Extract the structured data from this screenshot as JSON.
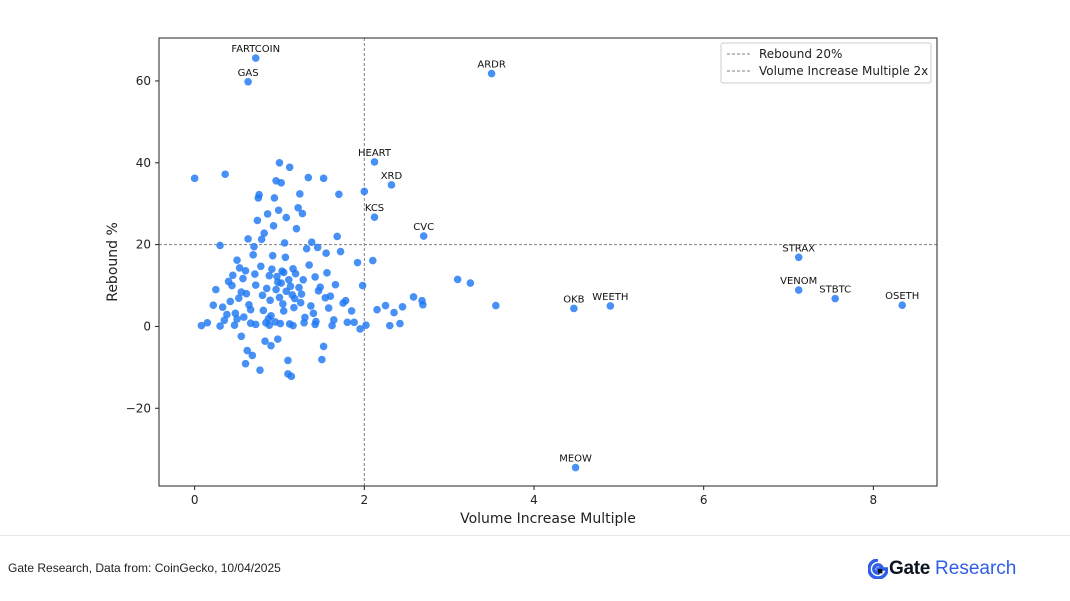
{
  "chart_data": {
    "type": "scatter",
    "xlabel": "Volume Increase Multiple",
    "ylabel": "Rebound %",
    "xlim": [
      -0.42,
      8.75
    ],
    "ylim": [
      -39,
      70.5
    ],
    "xticks": [
      0,
      2,
      4,
      6,
      8
    ],
    "yticks": [
      -20,
      0,
      20,
      40,
      60
    ],
    "grid": false,
    "legend_position": "top-right",
    "point_color": "#1f77f4",
    "reference_lines": [
      {
        "orientation": "horizontal",
        "value": 20,
        "label": "Rebound 20%",
        "style": "dashed",
        "color": "#808080"
      },
      {
        "orientation": "vertical",
        "value": 2,
        "label": "Volume Increase Multiple 2x",
        "style": "dashed",
        "color": "#808080"
      }
    ],
    "labeled_points": [
      {
        "label": "FARTCOIN",
        "x": 0.72,
        "y": 65.6
      },
      {
        "label": "GAS",
        "x": 0.63,
        "y": 59.8
      },
      {
        "label": "ARDR",
        "x": 3.5,
        "y": 61.8
      },
      {
        "label": "HEART",
        "x": 2.12,
        "y": 40.2
      },
      {
        "label": "XRD",
        "x": 2.32,
        "y": 34.6
      },
      {
        "label": "KCS",
        "x": 2.12,
        "y": 26.7
      },
      {
        "label": "CVC",
        "x": 2.7,
        "y": 22.1
      },
      {
        "label": "STRAX",
        "x": 7.12,
        "y": 16.9
      },
      {
        "label": "VENOM",
        "x": 7.12,
        "y": 8.9
      },
      {
        "label": "STBTC",
        "x": 7.55,
        "y": 6.8
      },
      {
        "label": "OSETH",
        "x": 8.34,
        "y": 5.2
      },
      {
        "label": "OKB",
        "x": 4.47,
        "y": 4.4
      },
      {
        "label": "WEETH",
        "x": 4.9,
        "y": 5.0
      },
      {
        "label": "MEOW",
        "x": 4.49,
        "y": -34.5
      }
    ],
    "points": [
      [
        0.0,
        36.2
      ],
      [
        0.36,
        37.2
      ],
      [
        0.08,
        0.2
      ],
      [
        0.15,
        0.9
      ],
      [
        0.22,
        5.2
      ],
      [
        0.25,
        9.0
      ],
      [
        0.3,
        19.8
      ],
      [
        0.33,
        4.7
      ],
      [
        0.38,
        2.9
      ],
      [
        0.4,
        11.0
      ],
      [
        0.45,
        12.5
      ],
      [
        0.47,
        0.3
      ],
      [
        0.5,
        16.2
      ],
      [
        0.52,
        6.9
      ],
      [
        0.55,
        8.4
      ],
      [
        0.58,
        2.3
      ],
      [
        0.6,
        13.6
      ],
      [
        0.62,
        -5.9
      ],
      [
        0.63,
        21.4
      ],
      [
        0.66,
        4.1
      ],
      [
        0.68,
        -7.1
      ],
      [
        0.7,
        19.5
      ],
      [
        0.72,
        10.1
      ],
      [
        0.74,
        25.9
      ],
      [
        0.75,
        31.4
      ],
      [
        0.76,
        32.2
      ],
      [
        0.78,
        14.7
      ],
      [
        0.8,
        7.6
      ],
      [
        0.82,
        22.8
      ],
      [
        0.84,
        0.9
      ],
      [
        0.86,
        27.5
      ],
      [
        0.88,
        12.4
      ],
      [
        0.9,
        2.6
      ],
      [
        0.92,
        17.3
      ],
      [
        0.94,
        31.4
      ],
      [
        0.96,
        35.6
      ],
      [
        0.98,
        10.8
      ],
      [
        1.0,
        40.0
      ],
      [
        1.02,
        35.1
      ],
      [
        1.04,
        5.5
      ],
      [
        1.06,
        20.4
      ],
      [
        1.08,
        26.6
      ],
      [
        1.1,
        -8.3
      ],
      [
        1.12,
        38.9
      ],
      [
        1.14,
        -12.2
      ],
      [
        1.16,
        14.1
      ],
      [
        1.2,
        23.9
      ],
      [
        1.24,
        32.4
      ],
      [
        1.27,
        27.6
      ],
      [
        1.3,
        2.2
      ],
      [
        1.34,
        36.4
      ],
      [
        1.38,
        20.6
      ],
      [
        1.42,
        12.1
      ],
      [
        1.46,
        8.7
      ],
      [
        1.5,
        -8.1
      ],
      [
        1.52,
        36.2
      ],
      [
        1.55,
        17.9
      ],
      [
        1.58,
        4.5
      ],
      [
        1.62,
        0.2
      ],
      [
        1.68,
        22.0
      ],
      [
        1.7,
        32.3
      ],
      [
        1.75,
        5.7
      ],
      [
        1.8,
        1.0
      ],
      [
        1.85,
        3.8
      ],
      [
        1.92,
        15.6
      ],
      [
        1.95,
        -0.6
      ],
      [
        1.98,
        10.0
      ],
      [
        2.0,
        33.0
      ],
      [
        2.02,
        0.3
      ],
      [
        2.1,
        16.1
      ],
      [
        2.15,
        4.1
      ],
      [
        2.25,
        5.1
      ],
      [
        2.3,
        0.2
      ],
      [
        2.35,
        3.4
      ],
      [
        2.42,
        0.7
      ],
      [
        2.45,
        4.8
      ],
      [
        2.58,
        7.2
      ],
      [
        2.68,
        6.3
      ],
      [
        2.69,
        5.3
      ],
      [
        3.1,
        11.5
      ],
      [
        3.25,
        10.6
      ],
      [
        3.55,
        5.1
      ],
      [
        0.44,
        10.0
      ],
      [
        0.5,
        1.8
      ],
      [
        0.55,
        -2.4
      ],
      [
        0.6,
        -9.1
      ],
      [
        0.66,
        0.8
      ],
      [
        0.77,
        -10.7
      ],
      [
        0.83,
        -3.6
      ],
      [
        0.9,
        -4.7
      ],
      [
        0.95,
        1.1
      ],
      [
        0.98,
        -3.1
      ],
      [
        1.05,
        3.8
      ],
      [
        1.1,
        -11.6
      ],
      [
        1.12,
        0.6
      ],
      [
        1.18,
        6.8
      ],
      [
        1.22,
        29.0
      ],
      [
        1.28,
        11.4
      ],
      [
        1.35,
        15.0
      ],
      [
        1.4,
        3.2
      ],
      [
        1.45,
        19.3
      ],
      [
        1.48,
        9.6
      ],
      [
        1.52,
        -4.9
      ],
      [
        1.56,
        13.1
      ],
      [
        1.6,
        7.4
      ],
      [
        1.64,
        1.6
      ],
      [
        1.72,
        18.3
      ],
      [
        1.78,
        6.3
      ],
      [
        1.88,
        1.0
      ],
      [
        0.3,
        0.1
      ],
      [
        0.35,
        1.5
      ],
      [
        0.42,
        6.1
      ],
      [
        0.48,
        3.2
      ],
      [
        0.53,
        14.3
      ],
      [
        0.57,
        11.7
      ],
      [
        0.64,
        5.3
      ],
      [
        0.69,
        17.5
      ],
      [
        0.79,
        21.3
      ],
      [
        0.81,
        3.9
      ],
      [
        0.87,
        1.9
      ],
      [
        0.93,
        24.6
      ],
      [
        0.99,
        28.4
      ],
      [
        1.03,
        13.5
      ],
      [
        1.07,
        16.9
      ],
      [
        1.13,
        9.8
      ],
      [
        1.17,
        4.6
      ],
      [
        1.26,
        7.9
      ],
      [
        1.32,
        19.0
      ],
      [
        1.37,
        5.0
      ],
      [
        1.43,
        1.2
      ],
      [
        1.54,
        7.0
      ],
      [
        1.66,
        10.2
      ],
      [
        0.72,
        0.5
      ],
      [
        0.88,
        0.3
      ],
      [
        1.01,
        0.7
      ],
      [
        1.16,
        0.2
      ],
      [
        1.29,
        0.9
      ],
      [
        1.42,
        0.5
      ],
      [
        0.61,
        8.0
      ],
      [
        0.71,
        12.8
      ],
      [
        0.85,
        9.3
      ],
      [
        0.89,
        6.4
      ],
      [
        0.91,
        14.0
      ],
      [
        0.96,
        9.0
      ],
      [
        0.97,
        12.2
      ],
      [
        1.0,
        7.1
      ],
      [
        1.02,
        10.6
      ],
      [
        1.05,
        13.2
      ],
      [
        1.08,
        8.6
      ],
      [
        1.11,
        11.4
      ],
      [
        1.15,
        7.7
      ],
      [
        1.19,
        12.9
      ],
      [
        1.23,
        9.5
      ],
      [
        1.25,
        5.8
      ]
    ]
  },
  "footer": {
    "source": "Gate Research, Data from: CoinGecko, 10/04/2025",
    "brand_gate": "Gate",
    "brand_research": "Research",
    "brand_color": "#2f5fe8"
  }
}
